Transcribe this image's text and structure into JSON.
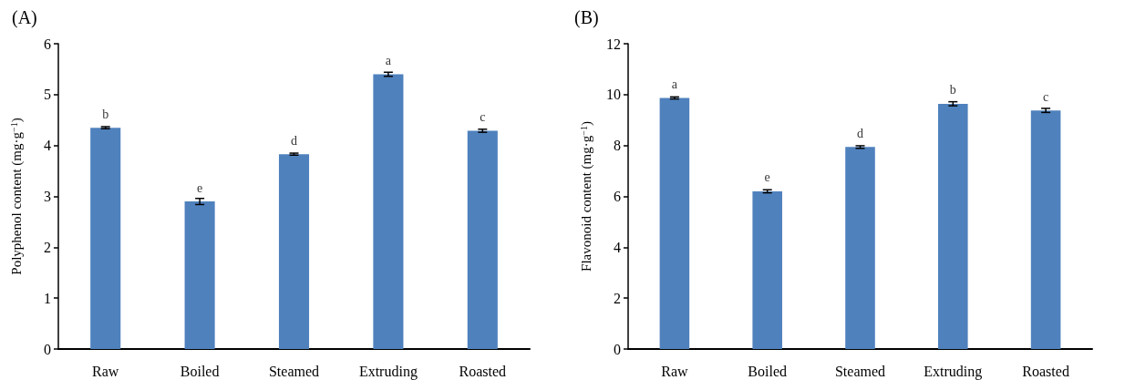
{
  "chart_data": [
    {
      "type": "bar",
      "title": "(A)",
      "ylabel": "Polyphenol content (mg·g$^{−1}$)",
      "categories": [
        "Raw",
        "Boiled",
        "Steamed",
        "Extruding",
        "Roasted"
      ],
      "values": [
        4.35,
        2.9,
        3.83,
        5.4,
        4.29
      ],
      "errors": [
        0.02,
        0.06,
        0.02,
        0.04,
        0.03
      ],
      "color": "#4f81bd",
      "ylim": [
        0,
        6
      ],
      "yticks": [
        0,
        1,
        2,
        3,
        4,
        5,
        6
      ],
      "grid": false,
      "legend": false,
      "annotations": [
        {
          "text": "b",
          "x": "Raw",
          "y": 4.35
        },
        {
          "text": "e",
          "x": "Boiled",
          "y": 2.9
        },
        {
          "text": "d",
          "x": "Steamed",
          "y": 3.83
        },
        {
          "text": "a",
          "x": "Extruding",
          "y": 5.4
        },
        {
          "text": "c",
          "x": "Roasted",
          "y": 4.29
        }
      ]
    },
    {
      "type": "bar",
      "title": "(B)",
      "ylabel": "Flavonoid content (mg·g$^{−1}$)",
      "categories": [
        "Raw",
        "Boiled",
        "Steamed",
        "Extruding",
        "Roasted"
      ],
      "values": [
        9.87,
        6.2,
        7.94,
        9.64,
        9.38
      ],
      "errors": [
        0.04,
        0.06,
        0.05,
        0.08,
        0.08
      ],
      "color": "#4f81bd",
      "ylim": [
        0,
        12
      ],
      "yticks": [
        0,
        2,
        4,
        6,
        8,
        10,
        12
      ],
      "grid": false,
      "legend": false,
      "annotations": [
        {
          "text": "a",
          "x": "Raw",
          "y": 9.87
        },
        {
          "text": "e",
          "x": "Boiled",
          "y": 6.2
        },
        {
          "text": "d",
          "x": "Steamed",
          "y": 7.94
        },
        {
          "text": "b",
          "x": "Extruding",
          "y": 9.64
        },
        {
          "text": "c",
          "x": "Roasted",
          "y": 9.38
        }
      ]
    }
  ]
}
